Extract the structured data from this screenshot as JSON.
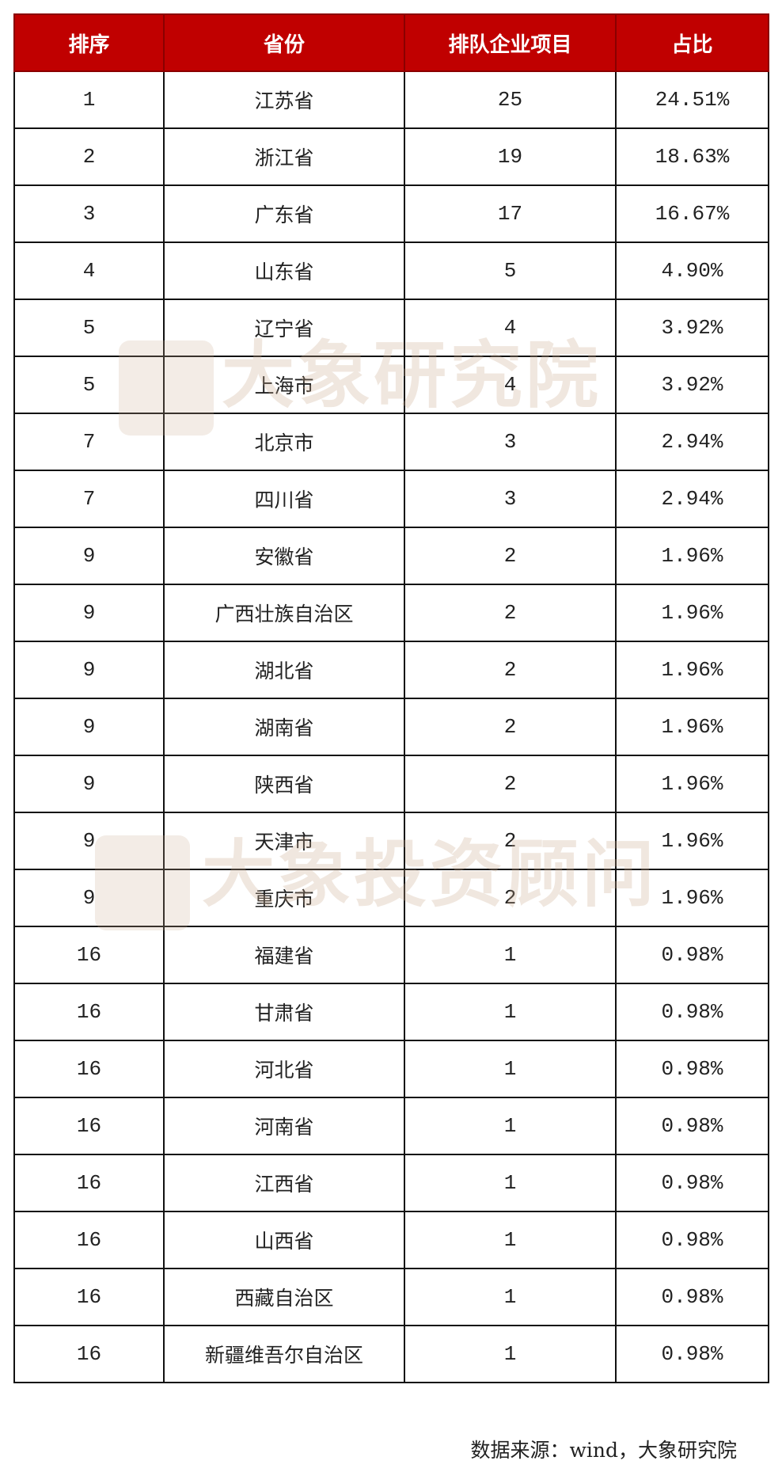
{
  "table": {
    "headers": [
      "排序",
      "省份",
      "排队企业项目",
      "占比"
    ],
    "rows": [
      [
        "1",
        "江苏省",
        "25",
        "24.51%"
      ],
      [
        "2",
        "浙江省",
        "19",
        "18.63%"
      ],
      [
        "3",
        "广东省",
        "17",
        "16.67%"
      ],
      [
        "4",
        "山东省",
        "5",
        "4.90%"
      ],
      [
        "5",
        "辽宁省",
        "4",
        "3.92%"
      ],
      [
        "5",
        "上海市",
        "4",
        "3.92%"
      ],
      [
        "7",
        "北京市",
        "3",
        "2.94%"
      ],
      [
        "7",
        "四川省",
        "3",
        "2.94%"
      ],
      [
        "9",
        "安徽省",
        "2",
        "1.96%"
      ],
      [
        "9",
        "广西壮族自治区",
        "2",
        "1.96%"
      ],
      [
        "9",
        "湖北省",
        "2",
        "1.96%"
      ],
      [
        "9",
        "湖南省",
        "2",
        "1.96%"
      ],
      [
        "9",
        "陕西省",
        "2",
        "1.96%"
      ],
      [
        "9",
        "天津市",
        "2",
        "1.96%"
      ],
      [
        "9",
        "重庆市",
        "2",
        "1.96%"
      ],
      [
        "16",
        "福建省",
        "1",
        "0.98%"
      ],
      [
        "16",
        "甘肃省",
        "1",
        "0.98%"
      ],
      [
        "16",
        "河北省",
        "1",
        "0.98%"
      ],
      [
        "16",
        "河南省",
        "1",
        "0.98%"
      ],
      [
        "16",
        "江西省",
        "1",
        "0.98%"
      ],
      [
        "16",
        "山西省",
        "1",
        "0.98%"
      ],
      [
        "16",
        "西藏自治区",
        "1",
        "0.98%"
      ],
      [
        "16",
        "新疆维吾尔自治区",
        "1",
        "0.98%"
      ]
    ]
  },
  "watermarks": [
    "大象研究院",
    "大象投资顾问"
  ],
  "source": "数据来源：wind，大象研究院",
  "colors": {
    "header_bg": "#c00000",
    "header_text": "#ffffff"
  }
}
